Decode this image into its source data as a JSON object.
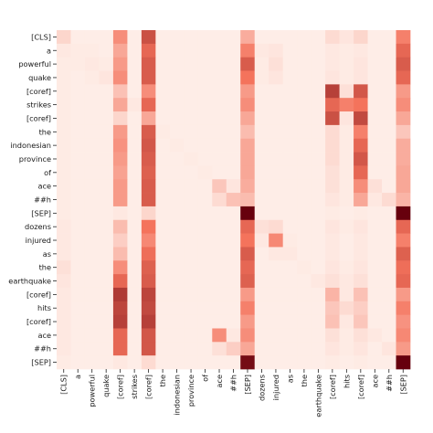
{
  "chart_data": {
    "type": "heatmap",
    "title": "",
    "xlabel": "",
    "ylabel": "",
    "grid": false,
    "legend": "none",
    "color_scale": {
      "low": "#fff5f0",
      "mid": "#f4735c",
      "high": "#67000d",
      "range": [
        0,
        1
      ]
    },
    "tokens": [
      "[CLS]",
      "a",
      "powerful",
      "quake",
      "[coref]",
      "strikes",
      "[coref]",
      "the",
      "indonesian",
      "province",
      "of",
      "ace",
      "##h",
      "[SEP]",
      "dozens",
      "injured",
      "as",
      "the",
      "earthquake",
      "[coref]",
      "hits",
      "[coref]",
      "ace",
      "##h",
      "[SEP]"
    ],
    "matrix": [
      [
        0.12,
        0.03,
        0.03,
        0.03,
        0.4,
        0.03,
        0.65,
        0.03,
        0.03,
        0.03,
        0.03,
        0.03,
        0.03,
        0.28,
        0.03,
        0.03,
        0.03,
        0.03,
        0.03,
        0.1,
        0.06,
        0.12,
        0.03,
        0.03,
        0.45
      ],
      [
        0.05,
        0.04,
        0.04,
        0.03,
        0.3,
        0.03,
        0.55,
        0.03,
        0.03,
        0.03,
        0.03,
        0.03,
        0.03,
        0.45,
        0.05,
        0.06,
        0.03,
        0.03,
        0.03,
        0.05,
        0.04,
        0.05,
        0.03,
        0.03,
        0.55
      ],
      [
        0.04,
        0.04,
        0.05,
        0.04,
        0.35,
        0.03,
        0.6,
        0.03,
        0.03,
        0.03,
        0.03,
        0.03,
        0.03,
        0.6,
        0.04,
        0.08,
        0.03,
        0.03,
        0.03,
        0.05,
        0.04,
        0.06,
        0.03,
        0.03,
        0.6
      ],
      [
        0.04,
        0.03,
        0.04,
        0.06,
        0.4,
        0.03,
        0.6,
        0.03,
        0.03,
        0.03,
        0.03,
        0.03,
        0.03,
        0.5,
        0.04,
        0.06,
        0.03,
        0.03,
        0.03,
        0.06,
        0.04,
        0.06,
        0.03,
        0.03,
        0.55
      ],
      [
        0.04,
        0.03,
        0.03,
        0.03,
        0.2,
        0.03,
        0.4,
        0.03,
        0.03,
        0.03,
        0.03,
        0.03,
        0.03,
        0.35,
        0.03,
        0.03,
        0.03,
        0.03,
        0.03,
        0.72,
        0.08,
        0.62,
        0.03,
        0.03,
        0.35
      ],
      [
        0.04,
        0.03,
        0.03,
        0.03,
        0.3,
        0.05,
        0.55,
        0.03,
        0.03,
        0.03,
        0.03,
        0.03,
        0.03,
        0.4,
        0.03,
        0.03,
        0.03,
        0.03,
        0.03,
        0.55,
        0.45,
        0.5,
        0.03,
        0.03,
        0.4
      ],
      [
        0.04,
        0.03,
        0.03,
        0.03,
        0.12,
        0.03,
        0.3,
        0.03,
        0.03,
        0.03,
        0.03,
        0.03,
        0.03,
        0.3,
        0.03,
        0.03,
        0.03,
        0.03,
        0.03,
        0.65,
        0.06,
        0.68,
        0.03,
        0.03,
        0.3
      ],
      [
        0.04,
        0.03,
        0.03,
        0.03,
        0.35,
        0.03,
        0.6,
        0.04,
        0.03,
        0.03,
        0.03,
        0.03,
        0.03,
        0.22,
        0.03,
        0.03,
        0.03,
        0.03,
        0.03,
        0.1,
        0.04,
        0.45,
        0.03,
        0.03,
        0.18
      ],
      [
        0.04,
        0.03,
        0.03,
        0.03,
        0.38,
        0.03,
        0.62,
        0.03,
        0.04,
        0.03,
        0.03,
        0.03,
        0.03,
        0.3,
        0.03,
        0.03,
        0.03,
        0.03,
        0.03,
        0.1,
        0.04,
        0.55,
        0.03,
        0.03,
        0.28
      ],
      [
        0.04,
        0.03,
        0.03,
        0.03,
        0.35,
        0.03,
        0.6,
        0.03,
        0.03,
        0.04,
        0.03,
        0.03,
        0.03,
        0.3,
        0.03,
        0.03,
        0.03,
        0.03,
        0.03,
        0.1,
        0.04,
        0.62,
        0.03,
        0.03,
        0.28
      ],
      [
        0.04,
        0.03,
        0.03,
        0.03,
        0.32,
        0.03,
        0.58,
        0.03,
        0.03,
        0.03,
        0.04,
        0.03,
        0.03,
        0.3,
        0.03,
        0.03,
        0.03,
        0.03,
        0.03,
        0.08,
        0.04,
        0.55,
        0.03,
        0.03,
        0.3
      ],
      [
        0.04,
        0.03,
        0.03,
        0.03,
        0.35,
        0.03,
        0.6,
        0.03,
        0.03,
        0.03,
        0.03,
        0.18,
        0.06,
        0.28,
        0.03,
        0.03,
        0.03,
        0.03,
        0.03,
        0.08,
        0.04,
        0.4,
        0.08,
        0.03,
        0.3
      ],
      [
        0.04,
        0.03,
        0.03,
        0.03,
        0.35,
        0.03,
        0.6,
        0.03,
        0.03,
        0.03,
        0.03,
        0.1,
        0.2,
        0.22,
        0.03,
        0.03,
        0.03,
        0.03,
        0.03,
        0.06,
        0.04,
        0.3,
        0.05,
        0.1,
        0.25
      ],
      [
        0.04,
        0.03,
        0.03,
        0.03,
        0.05,
        0.03,
        0.12,
        0.03,
        0.03,
        0.03,
        0.03,
        0.03,
        0.03,
        1.0,
        0.03,
        0.03,
        0.03,
        0.03,
        0.03,
        0.04,
        0.03,
        0.04,
        0.03,
        0.03,
        1.0
      ],
      [
        0.05,
        0.03,
        0.03,
        0.03,
        0.22,
        0.03,
        0.5,
        0.03,
        0.03,
        0.03,
        0.03,
        0.03,
        0.03,
        0.55,
        0.08,
        0.1,
        0.03,
        0.03,
        0.03,
        0.06,
        0.04,
        0.06,
        0.03,
        0.03,
        0.55
      ],
      [
        0.05,
        0.03,
        0.03,
        0.03,
        0.15,
        0.03,
        0.42,
        0.03,
        0.03,
        0.03,
        0.03,
        0.03,
        0.03,
        0.5,
        0.05,
        0.42,
        0.04,
        0.03,
        0.03,
        0.05,
        0.03,
        0.05,
        0.03,
        0.03,
        0.45
      ],
      [
        0.05,
        0.03,
        0.03,
        0.03,
        0.22,
        0.03,
        0.52,
        0.03,
        0.03,
        0.03,
        0.03,
        0.03,
        0.03,
        0.6,
        0.03,
        0.05,
        0.05,
        0.03,
        0.03,
        0.05,
        0.03,
        0.05,
        0.03,
        0.03,
        0.58
      ],
      [
        0.08,
        0.03,
        0.03,
        0.03,
        0.4,
        0.03,
        0.58,
        0.03,
        0.03,
        0.03,
        0.03,
        0.03,
        0.03,
        0.55,
        0.03,
        0.03,
        0.03,
        0.04,
        0.03,
        0.06,
        0.04,
        0.06,
        0.03,
        0.03,
        0.52
      ],
      [
        0.06,
        0.03,
        0.03,
        0.03,
        0.55,
        0.03,
        0.6,
        0.03,
        0.03,
        0.03,
        0.03,
        0.03,
        0.03,
        0.58,
        0.03,
        0.03,
        0.03,
        0.03,
        0.05,
        0.08,
        0.05,
        0.08,
        0.03,
        0.03,
        0.55
      ],
      [
        0.05,
        0.03,
        0.03,
        0.03,
        0.75,
        0.03,
        0.7,
        0.03,
        0.03,
        0.03,
        0.03,
        0.03,
        0.03,
        0.35,
        0.03,
        0.03,
        0.03,
        0.03,
        0.03,
        0.25,
        0.05,
        0.2,
        0.03,
        0.03,
        0.35
      ],
      [
        0.05,
        0.03,
        0.03,
        0.03,
        0.7,
        0.03,
        0.68,
        0.03,
        0.03,
        0.03,
        0.03,
        0.03,
        0.03,
        0.45,
        0.03,
        0.03,
        0.03,
        0.03,
        0.03,
        0.18,
        0.1,
        0.15,
        0.03,
        0.03,
        0.45
      ],
      [
        0.05,
        0.03,
        0.03,
        0.03,
        0.72,
        0.03,
        0.72,
        0.03,
        0.03,
        0.03,
        0.03,
        0.03,
        0.03,
        0.35,
        0.03,
        0.03,
        0.03,
        0.03,
        0.03,
        0.2,
        0.05,
        0.18,
        0.03,
        0.03,
        0.38
      ],
      [
        0.05,
        0.03,
        0.03,
        0.03,
        0.55,
        0.03,
        0.62,
        0.03,
        0.03,
        0.03,
        0.03,
        0.4,
        0.05,
        0.4,
        0.03,
        0.03,
        0.03,
        0.03,
        0.03,
        0.08,
        0.04,
        0.08,
        0.05,
        0.03,
        0.42
      ],
      [
        0.05,
        0.03,
        0.03,
        0.03,
        0.55,
        0.03,
        0.62,
        0.03,
        0.03,
        0.03,
        0.03,
        0.08,
        0.15,
        0.3,
        0.03,
        0.03,
        0.03,
        0.03,
        0.03,
        0.06,
        0.04,
        0.06,
        0.03,
        0.06,
        0.35
      ],
      [
        0.04,
        0.03,
        0.03,
        0.03,
        0.05,
        0.03,
        0.1,
        0.03,
        0.03,
        0.03,
        0.03,
        0.03,
        0.03,
        0.95,
        0.03,
        0.03,
        0.03,
        0.03,
        0.03,
        0.04,
        0.03,
        0.04,
        0.03,
        0.03,
        1.0
      ]
    ]
  }
}
